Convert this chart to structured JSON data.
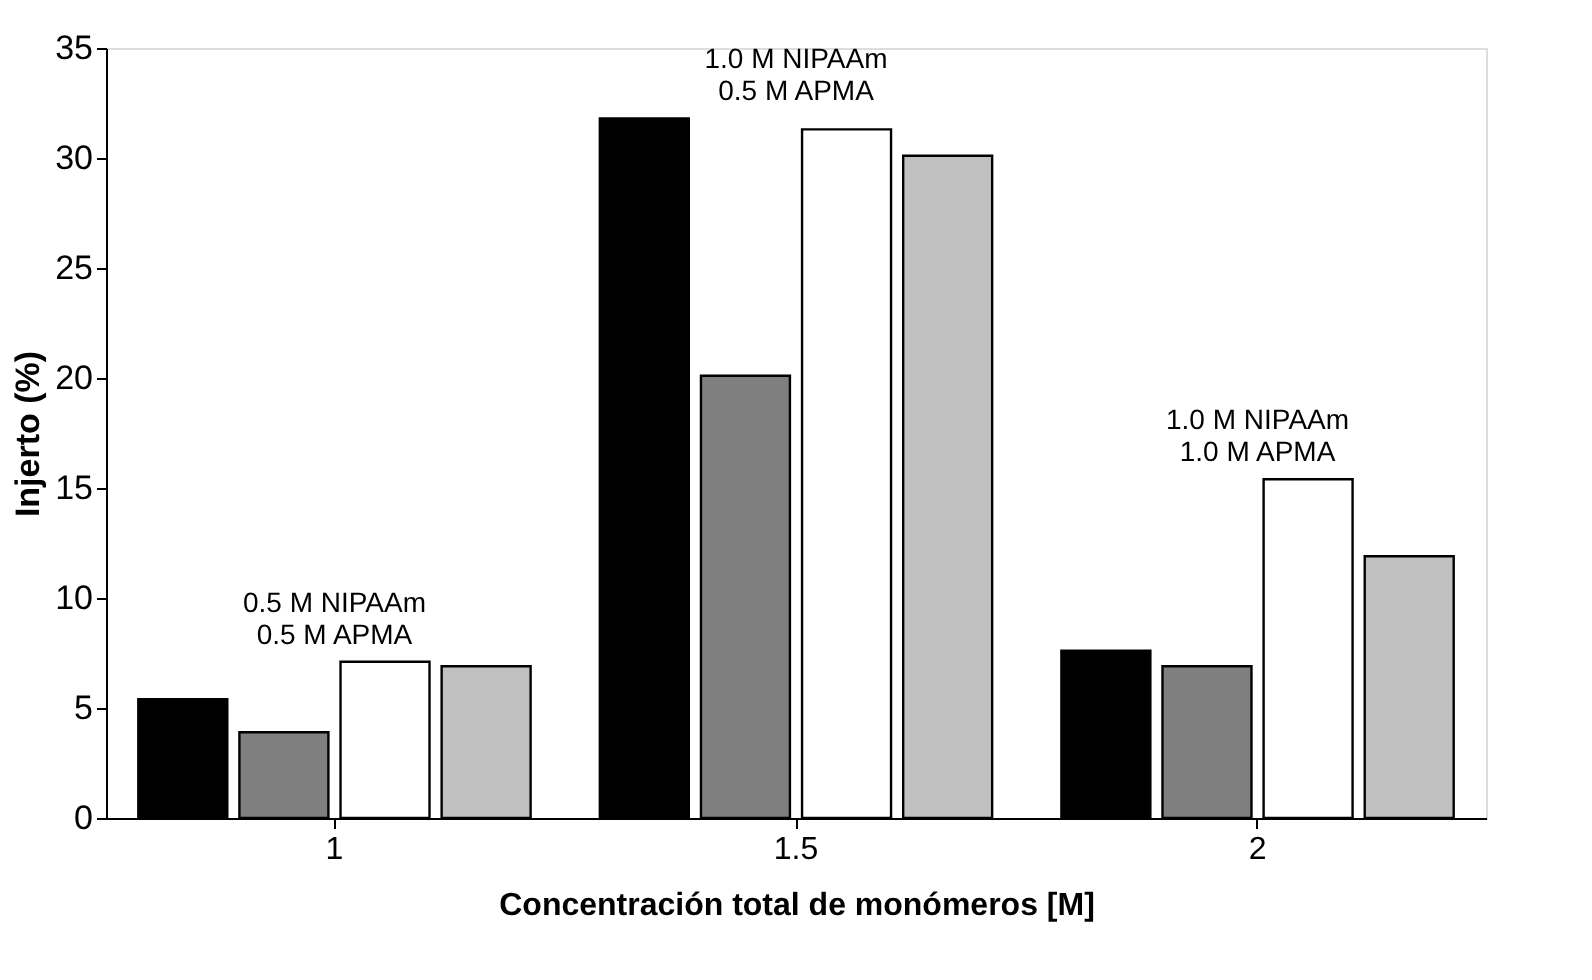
{
  "chart_data": {
    "type": "bar",
    "xlabel": "Concentración total de monómeros [M]",
    "ylabel": "Injerto (%)",
    "categories": [
      "1",
      "1.5",
      "2"
    ],
    "series": [
      {
        "color": "#000000",
        "values": [
          5.4,
          31.8,
          7.6
        ]
      },
      {
        "color": "#7f7f7f",
        "values": [
          3.9,
          20.1,
          6.9
        ]
      },
      {
        "color": "#ffffff",
        "values": [
          7.1,
          31.3,
          15.4
        ]
      },
      {
        "color": "#c0c0c0",
        "values": [
          6.9,
          30.1,
          11.9
        ]
      }
    ],
    "ylim": [
      0,
      35
    ],
    "yticks": [
      0,
      5,
      10,
      15,
      20,
      25,
      30,
      35
    ],
    "grid": false,
    "annotations": [
      "0.5 M NIPAAm\n0.5 M APMA",
      "1.0 M NIPAAm\n0.5 M APMA",
      "1.0 M NIPAAm\n1.0 M APMA"
    ]
  }
}
